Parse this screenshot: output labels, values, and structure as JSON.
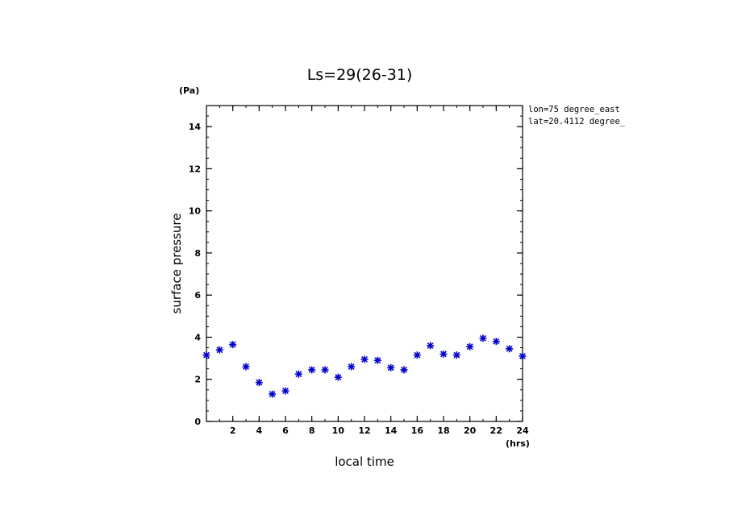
{
  "chart_data": {
    "type": "scatter",
    "title": "Ls=29(26-31)",
    "xlabel": "local time",
    "ylabel": "surface pressure",
    "xunit": "(hrs)",
    "yunit": "(Pa)",
    "xlim": [
      0,
      24
    ],
    "ylim": [
      0,
      15
    ],
    "xticks": [
      2,
      4,
      6,
      8,
      10,
      12,
      14,
      16,
      18,
      20,
      22,
      24
    ],
    "yticks": [
      0,
      2,
      4,
      6,
      8,
      10,
      12,
      14
    ],
    "annotations": [
      "lon=75 degree_east",
      "lat=20.4112 degree_"
    ],
    "marker": "asterisk",
    "marker_color": "#0000cc",
    "grid": false,
    "x": [
      0,
      1,
      2,
      3,
      4,
      5,
      6,
      7,
      8,
      9,
      10,
      11,
      12,
      13,
      14,
      15,
      16,
      17,
      18,
      19,
      20,
      21,
      22,
      23,
      24
    ],
    "y": [
      3.15,
      3.4,
      3.65,
      2.6,
      1.85,
      1.3,
      1.45,
      2.25,
      2.45,
      2.45,
      2.1,
      2.6,
      2.95,
      2.9,
      2.55,
      2.45,
      3.15,
      3.6,
      3.2,
      3.15,
      3.55,
      3.95,
      3.8,
      3.45,
      3.1
    ]
  }
}
